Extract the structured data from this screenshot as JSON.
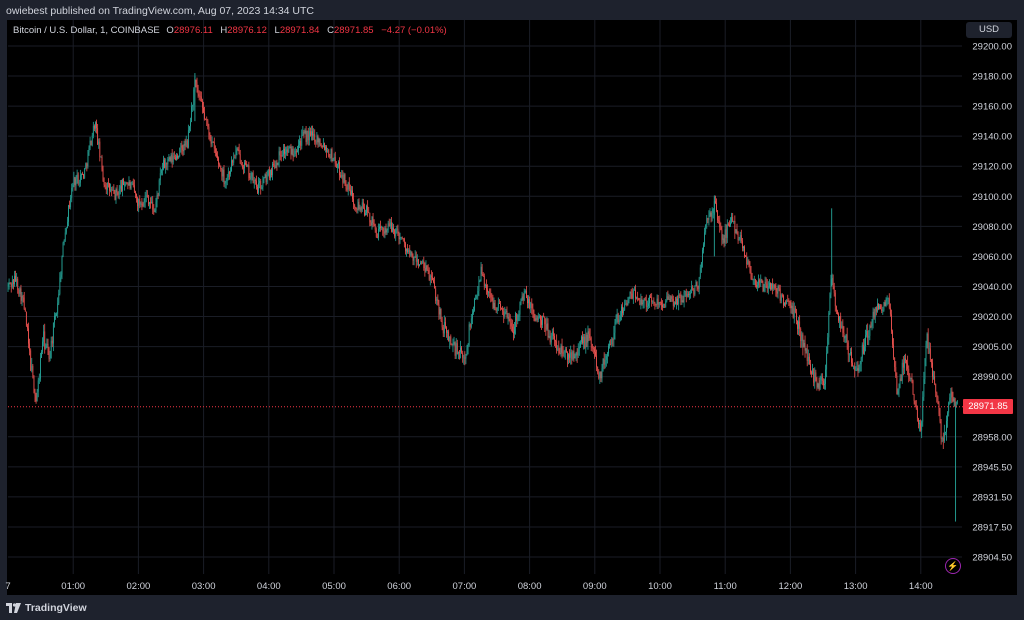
{
  "header": {
    "publish_text": "owiebest published on TradingView.com, Aug 07, 2023 14:34 UTC"
  },
  "legend": {
    "symbol": "Bitcoin / U.S. Dollar, 1, COINBASE",
    "open_label": "O",
    "open": "28976.11",
    "high_label": "H",
    "high": "28976.12",
    "low_label": "L",
    "low": "28971.84",
    "close_label": "C",
    "close": "28971.85",
    "change": "−4.27 (−0.01%)"
  },
  "currency_button": "USD",
  "last_price_tag": "28971.85",
  "footer": {
    "brand": "TradingView"
  },
  "colors": {
    "up": "#26a69a",
    "down": "#ef5350",
    "background": "#000000",
    "grid": "#1a1d26",
    "axis_text": "#d1d4dc",
    "price_line": "#f23645",
    "panel": "#1e222d"
  },
  "chart_data": {
    "type": "candlestick",
    "interval": "1 minute",
    "y_tick_labels": [
      "29200.00",
      "29180.00",
      "29160.00",
      "29140.00",
      "29120.00",
      "29100.00",
      "29080.00",
      "29060.00",
      "29040.00",
      "29020.00",
      "29005.00",
      "28990.00",
      "28971.85",
      "28958.00",
      "28945.50",
      "28931.50",
      "28917.50",
      "28904.50"
    ],
    "x_tick_labels": [
      "7",
      "01:00",
      "02:00",
      "03:00",
      "04:00",
      "05:00",
      "06:00",
      "07:00",
      "08:00",
      "09:00",
      "10:00",
      "11:00",
      "12:00",
      "13:00",
      "14:00"
    ],
    "last_price": 28971.85,
    "price_path": [
      {
        "t": "00:00",
        "p": 29040
      },
      {
        "t": "00:07",
        "p": 29045
      },
      {
        "t": "00:14",
        "p": 29030
      },
      {
        "t": "00:20",
        "p": 29000
      },
      {
        "t": "00:26",
        "p": 28975
      },
      {
        "t": "00:32",
        "p": 29010
      },
      {
        "t": "00:38",
        "p": 29000
      },
      {
        "t": "00:45",
        "p": 29025
      },
      {
        "t": "00:52",
        "p": 29075
      },
      {
        "t": "01:00",
        "p": 29110
      },
      {
        "t": "01:10",
        "p": 29115
      },
      {
        "t": "01:20",
        "p": 29150
      },
      {
        "t": "01:28",
        "p": 29110
      },
      {
        "t": "01:38",
        "p": 29100
      },
      {
        "t": "01:48",
        "p": 29110
      },
      {
        "t": "01:55",
        "p": 29105
      },
      {
        "t": "02:00",
        "p": 29095
      },
      {
        "t": "02:08",
        "p": 29100
      },
      {
        "t": "02:15",
        "p": 29090
      },
      {
        "t": "02:22",
        "p": 29120
      },
      {
        "t": "02:32",
        "p": 29125
      },
      {
        "t": "02:45",
        "p": 29135
      },
      {
        "t": "02:52",
        "p": 29175
      },
      {
        "t": "03:00",
        "p": 29155
      },
      {
        "t": "03:10",
        "p": 29130
      },
      {
        "t": "03:20",
        "p": 29110
      },
      {
        "t": "03:30",
        "p": 29130
      },
      {
        "t": "03:38",
        "p": 29120
      },
      {
        "t": "03:50",
        "p": 29105
      },
      {
        "t": "04:00",
        "p": 29115
      },
      {
        "t": "04:12",
        "p": 29130
      },
      {
        "t": "04:22",
        "p": 29130
      },
      {
        "t": "04:32",
        "p": 29140
      },
      {
        "t": "04:42",
        "p": 29140
      },
      {
        "t": "04:50",
        "p": 29135
      },
      {
        "t": "05:00",
        "p": 29125
      },
      {
        "t": "05:10",
        "p": 29110
      },
      {
        "t": "05:20",
        "p": 29095
      },
      {
        "t": "05:30",
        "p": 29090
      },
      {
        "t": "05:40",
        "p": 29075
      },
      {
        "t": "05:50",
        "p": 29080
      },
      {
        "t": "06:00",
        "p": 29075
      },
      {
        "t": "06:10",
        "p": 29060
      },
      {
        "t": "06:20",
        "p": 29055
      },
      {
        "t": "06:30",
        "p": 29045
      },
      {
        "t": "06:40",
        "p": 29015
      },
      {
        "t": "06:50",
        "p": 29005
      },
      {
        "t": "07:00",
        "p": 28998
      },
      {
        "t": "07:08",
        "p": 29025
      },
      {
        "t": "07:15",
        "p": 29050
      },
      {
        "t": "07:25",
        "p": 29030
      },
      {
        "t": "07:35",
        "p": 29025
      },
      {
        "t": "07:45",
        "p": 29015
      },
      {
        "t": "07:55",
        "p": 29035
      },
      {
        "t": "08:05",
        "p": 29020
      },
      {
        "t": "08:15",
        "p": 29015
      },
      {
        "t": "08:25",
        "p": 29005
      },
      {
        "t": "08:35",
        "p": 29000
      },
      {
        "t": "08:45",
        "p": 29005
      },
      {
        "t": "08:55",
        "p": 29010
      },
      {
        "t": "09:05",
        "p": 28990
      },
      {
        "t": "09:15",
        "p": 29010
      },
      {
        "t": "09:25",
        "p": 29025
      },
      {
        "t": "09:35",
        "p": 29035
      },
      {
        "t": "09:45",
        "p": 29030
      },
      {
        "t": "09:55",
        "p": 29030
      },
      {
        "t": "10:05",
        "p": 29030
      },
      {
        "t": "10:15",
        "p": 29030
      },
      {
        "t": "10:25",
        "p": 29035
      },
      {
        "t": "10:35",
        "p": 29040
      },
      {
        "t": "10:42",
        "p": 29080
      },
      {
        "t": "10:50",
        "p": 29095
      },
      {
        "t": "10:58",
        "p": 29070
      },
      {
        "t": "11:05",
        "p": 29085
      },
      {
        "t": "11:15",
        "p": 29070
      },
      {
        "t": "11:25",
        "p": 29045
      },
      {
        "t": "11:35",
        "p": 29040
      },
      {
        "t": "11:45",
        "p": 29040
      },
      {
        "t": "11:55",
        "p": 29030
      },
      {
        "t": "12:05",
        "p": 29020
      },
      {
        "t": "12:15",
        "p": 29000
      },
      {
        "t": "12:25",
        "p": 28985
      },
      {
        "t": "12:32",
        "p": 28990
      },
      {
        "t": "12:38",
        "p": 29050
      },
      {
        "t": "12:42",
        "p": 29025
      },
      {
        "t": "12:50",
        "p": 29010
      },
      {
        "t": "13:00",
        "p": 28990
      },
      {
        "t": "13:10",
        "p": 29010
      },
      {
        "t": "13:20",
        "p": 29025
      },
      {
        "t": "13:30",
        "p": 29030
      },
      {
        "t": "13:38",
        "p": 28980
      },
      {
        "t": "13:45",
        "p": 29000
      },
      {
        "t": "13:52",
        "p": 28985
      },
      {
        "t": "14:00",
        "p": 28960
      },
      {
        "t": "14:05",
        "p": 29010
      },
      {
        "t": "14:12",
        "p": 28990
      },
      {
        "t": "14:20",
        "p": 28955
      },
      {
        "t": "14:28",
        "p": 28980
      },
      {
        "t": "14:34",
        "p": 28971.85
      }
    ]
  }
}
